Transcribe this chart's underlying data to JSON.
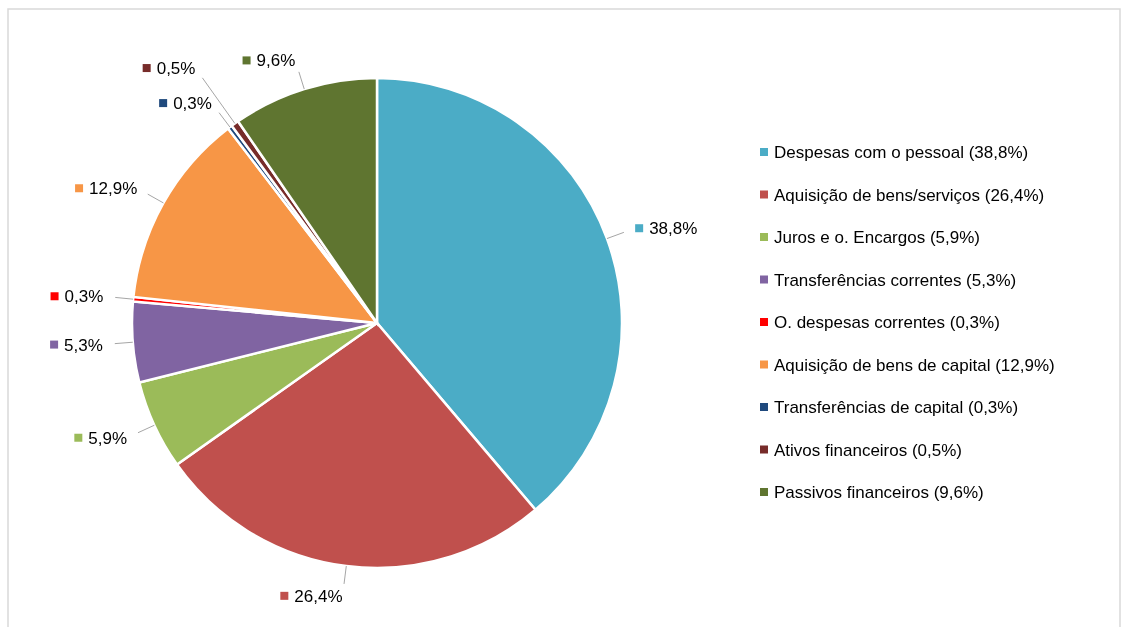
{
  "chart_data": {
    "type": "pie",
    "categories": [
      "Despesas com o pessoal (38,8%)",
      "Aquisição de bens/serviços (26,4%)",
      "Juros e o. Encargos (5,9%)",
      "Transferências correntes (5,3%)",
      "O. despesas correntes (0,3%)",
      "Aquisição de bens de capital (12,9%)",
      "Transferências de capital (0,3%)",
      "Ativos financeiros (0,5%)",
      "Passivos financeiros (9,6%)"
    ],
    "values": [
      38.8,
      26.4,
      5.9,
      5.3,
      0.3,
      12.9,
      0.3,
      0.5,
      9.6
    ],
    "colors": [
      "#4bacc6",
      "#c0504d",
      "#9bbb59",
      "#8064a2",
      "#ff0000",
      "#f79646",
      "#1f497d",
      "#772c2a",
      "#5f7530"
    ],
    "value_labels": [
      "38,8%",
      "26,4%",
      "5,9%",
      "5,3%",
      "0,3%",
      "12,9%",
      "0,3%",
      "0,5%",
      "9,6%"
    ],
    "legend": "right"
  }
}
